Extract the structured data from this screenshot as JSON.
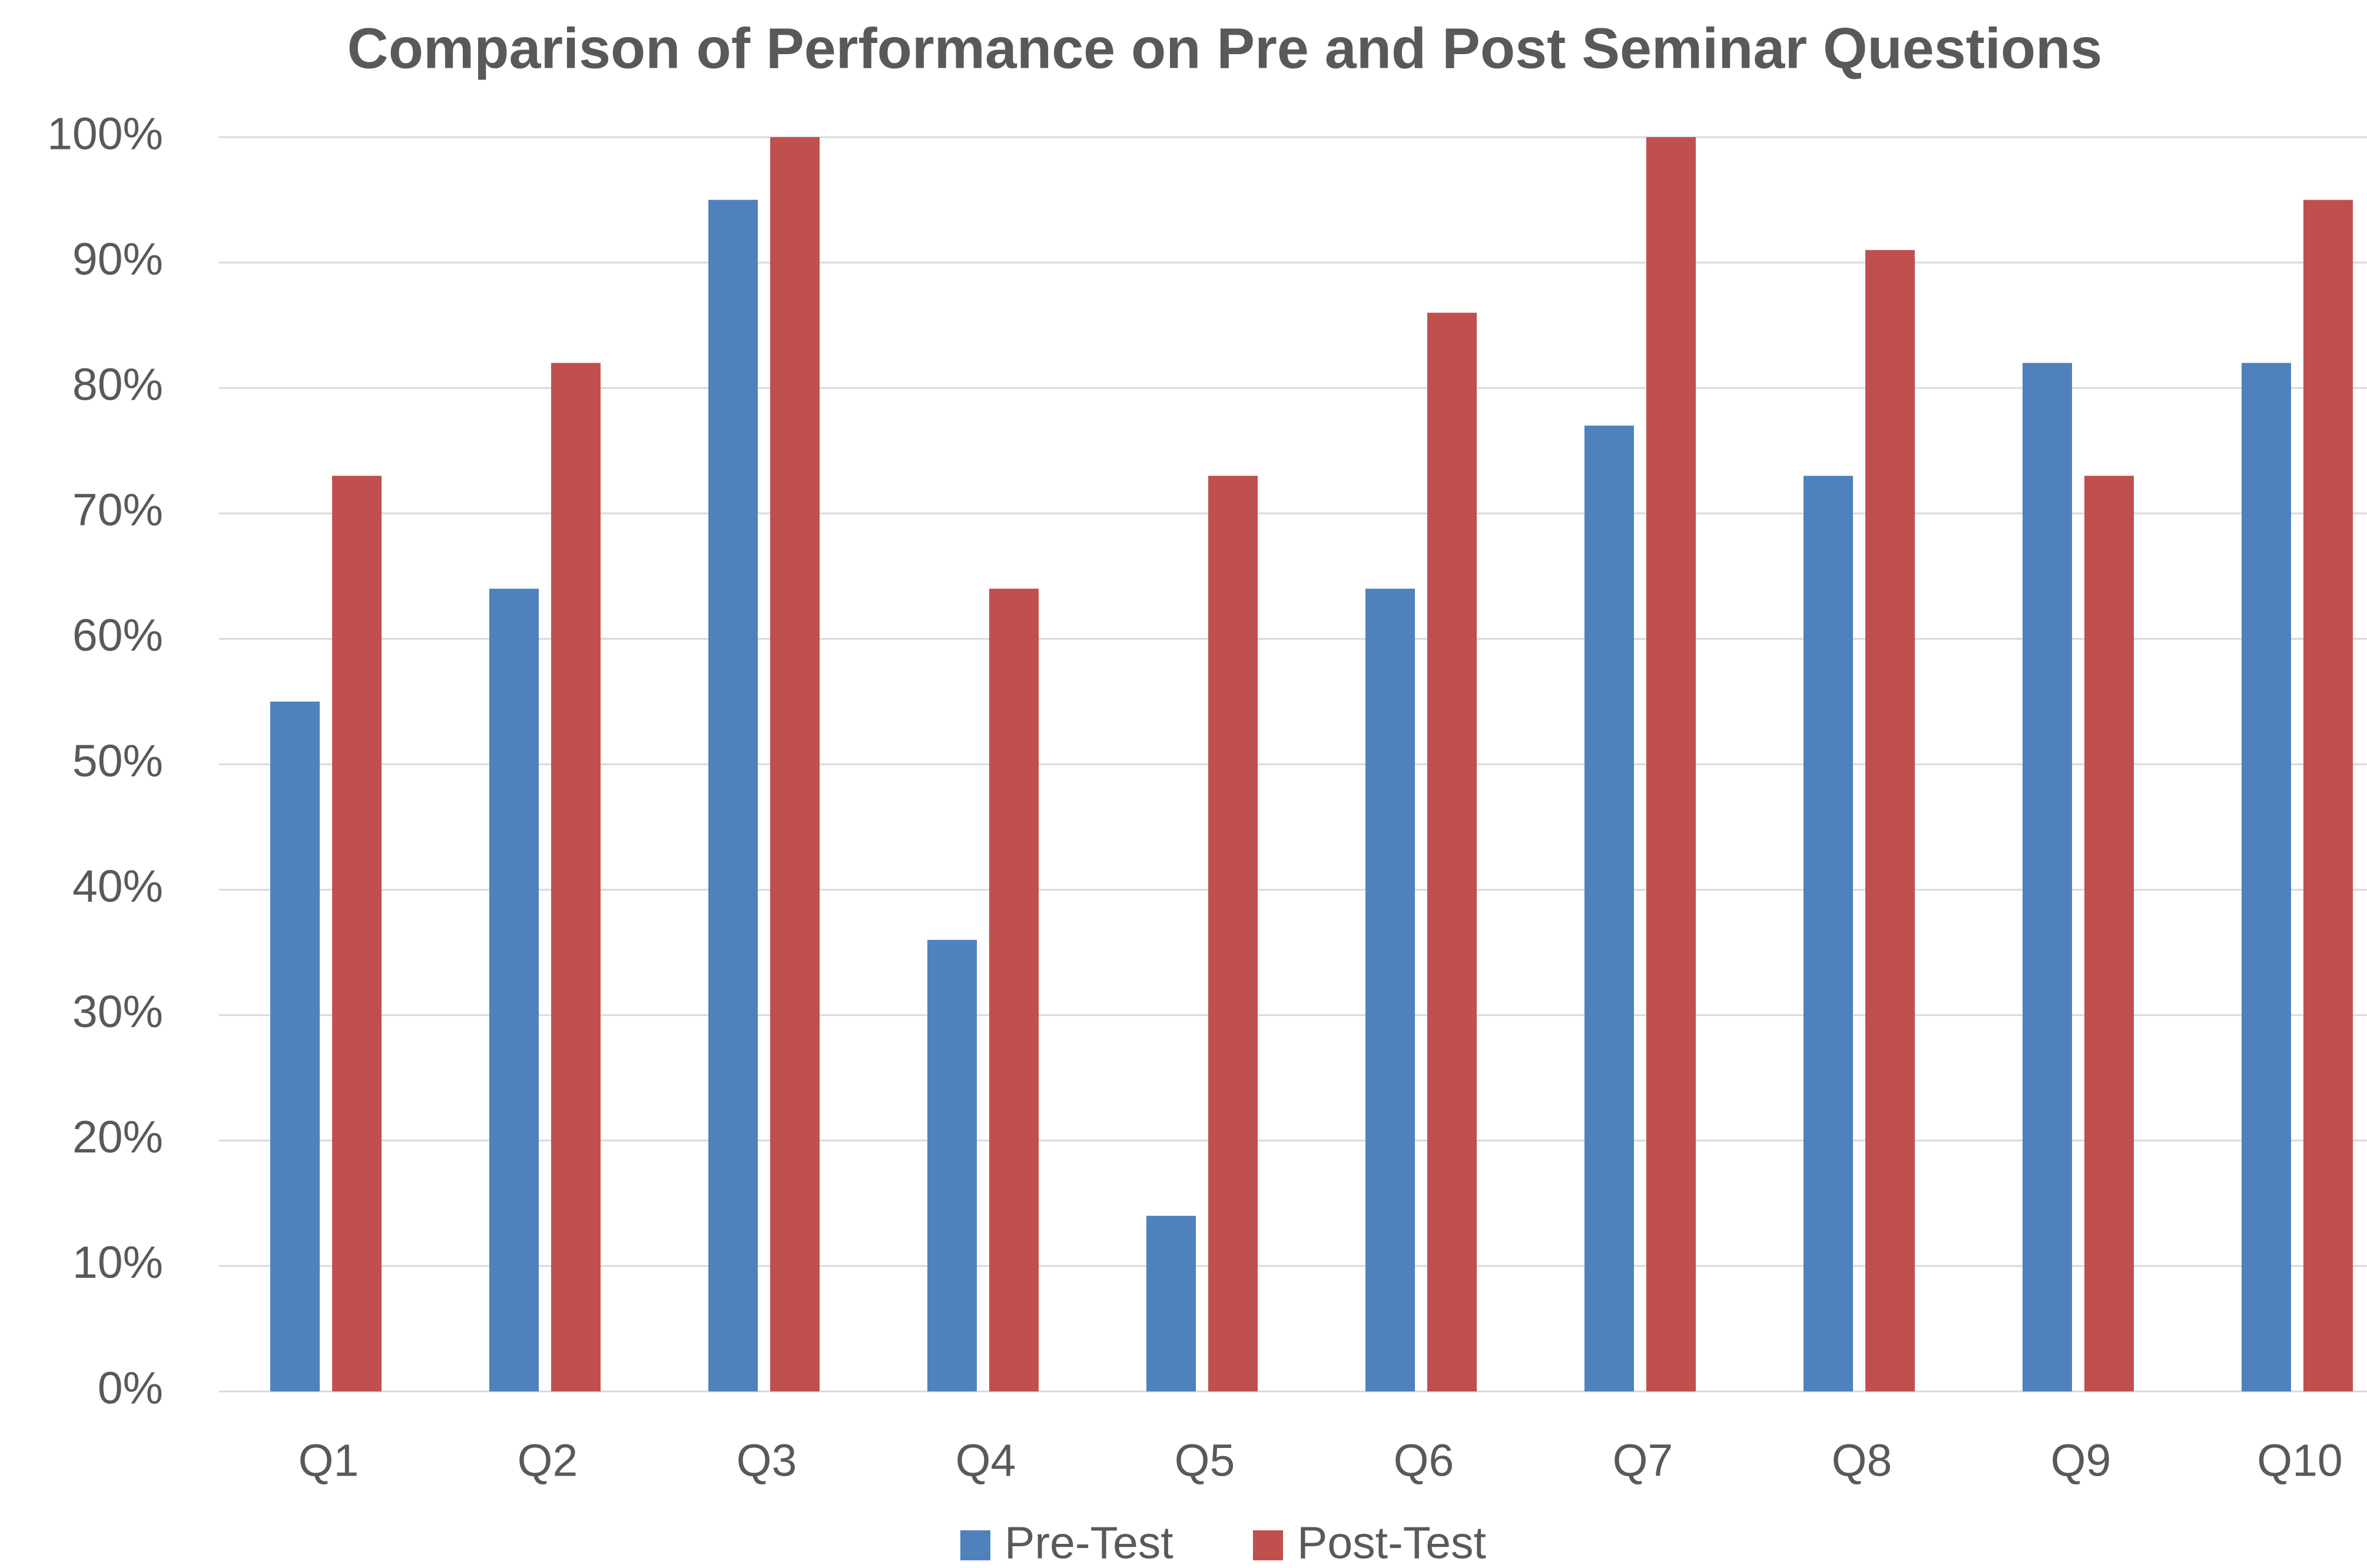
{
  "chart_data": {
    "type": "bar",
    "title": "Comparison of Performance on Pre and Post Seminar Questions",
    "categories": [
      "Q1",
      "Q2",
      "Q3",
      "Q4",
      "Q5",
      "Q6",
      "Q7",
      "Q8",
      "Q9",
      "Q10"
    ],
    "series": [
      {
        "name": "Pre-Test",
        "color": "#4f81bd",
        "values": [
          55,
          64,
          95,
          36,
          14,
          64,
          77,
          73,
          82,
          82
        ]
      },
      {
        "name": "Post-Test",
        "color": "#c0504d",
        "values": [
          73,
          82,
          100,
          64,
          73,
          86,
          100,
          91,
          73,
          95
        ]
      }
    ],
    "ylim": [
      0,
      100
    ],
    "yticks": [
      {
        "value": 0,
        "label": "0%"
      },
      {
        "value": 10,
        "label": "10%"
      },
      {
        "value": 20,
        "label": "20%"
      },
      {
        "value": 30,
        "label": "30%"
      },
      {
        "value": 40,
        "label": "40%"
      },
      {
        "value": 50,
        "label": "50%"
      },
      {
        "value": 60,
        "label": "60%"
      },
      {
        "value": 70,
        "label": "70%"
      },
      {
        "value": 80,
        "label": "80%"
      },
      {
        "value": 90,
        "label": "90%"
      },
      {
        "value": 100,
        "label": "100%"
      }
    ],
    "grid": true,
    "legend": "bottom"
  }
}
